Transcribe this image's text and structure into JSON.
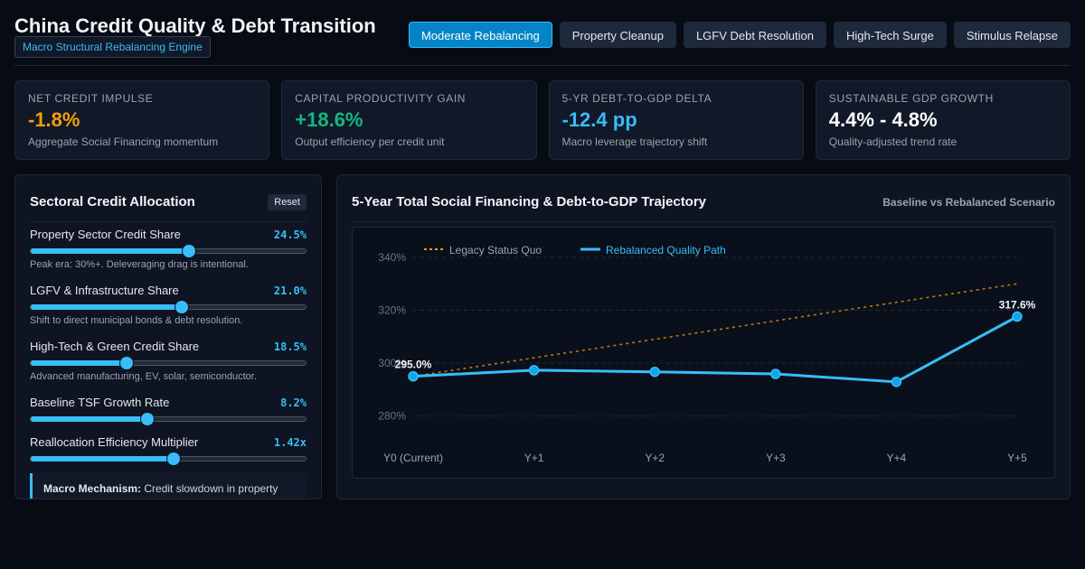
{
  "header": {
    "title": "China Credit Quality & Debt Transition",
    "subtitle": "Macro Structural Rebalancing Engine",
    "scenarios": [
      {
        "label": "Moderate Rebalancing",
        "active": true
      },
      {
        "label": "Property Cleanup",
        "active": false
      },
      {
        "label": "LGFV Debt Resolution",
        "active": false
      },
      {
        "label": "High-Tech Surge",
        "active": false
      },
      {
        "label": "Stimulus Relapse",
        "active": false
      }
    ]
  },
  "kpis": [
    {
      "label": "Net Credit Impulse",
      "value": "-1.8%",
      "desc": "Aggregate Social Financing momentum",
      "color": "#f59e0b"
    },
    {
      "label": "Capital Productivity Gain",
      "value": "+18.6%",
      "desc": "Output efficiency per credit unit",
      "color": "#10b981"
    },
    {
      "label": "5-Yr Debt-to-GDP Delta",
      "value": "-12.4 pp",
      "desc": "Macro leverage trajectory shift",
      "color": "#38bdf8"
    },
    {
      "label": "Sustainable GDP Growth",
      "value": "4.4% - 4.8%",
      "desc": "Quality-adjusted trend rate",
      "color": "#ffffff"
    }
  ],
  "controls": {
    "title": "Sectoral Credit Allocation",
    "reset_label": "Reset",
    "sliders": [
      {
        "label": "Property Sector Credit Share",
        "value": "24.5%",
        "level": 0.575,
        "hint": "Peak era: 30%+. Deleveraging drag is intentional."
      },
      {
        "label": "LGFV & Infrastructure Share",
        "value": "21.0%",
        "level": 0.548,
        "hint": "Shift to direct municipal bonds & debt resolution."
      },
      {
        "label": "High-Tech & Green Credit Share",
        "value": "18.5%",
        "level": 0.348,
        "hint": "Advanced manufacturing, EV, solar, semiconductor."
      },
      {
        "label": "Baseline TSF Growth Rate",
        "value": "8.2%",
        "level": 0.424,
        "hint": ""
      },
      {
        "label": "Reallocation Efficiency Multiplier",
        "value": "1.42x",
        "level": 0.519,
        "hint": ""
      }
    ],
    "mechanism_label": "Macro Mechanism:",
    "mechanism_text": " Credit slowdown in property"
  },
  "chart_panel": {
    "title": "5-Year Total Social Financing & Debt-to-GDP Trajectory",
    "subtitle": "Baseline vs Rebalanced Scenario"
  },
  "chart_data": {
    "type": "line",
    "categories": [
      "Y0 (Current)",
      "Y+1",
      "Y+2",
      "Y+3",
      "Y+4",
      "Y+5"
    ],
    "y_ticks": [
      "280%",
      "300%",
      "320%",
      "340%"
    ],
    "ylim": [
      272,
      341
    ],
    "grid": true,
    "legend_position": "top-left",
    "series": [
      {
        "name": "Legacy Status Quo",
        "values": [
          295.0,
          302.0,
          309.0,
          316.0,
          323.0,
          330.0
        ],
        "color": "#f59e0b",
        "style": "dashed"
      },
      {
        "name": "Rebalanced Quality Path",
        "values": [
          295.0,
          297.3,
          296.7,
          295.9,
          292.9,
          317.6
        ],
        "color": "#38bdf8",
        "style": "solid"
      }
    ],
    "data_labels": [
      {
        "text": "295.0%",
        "index": 0,
        "series": 1
      },
      {
        "text": "317.6%",
        "index": 5,
        "series": 1
      }
    ]
  }
}
